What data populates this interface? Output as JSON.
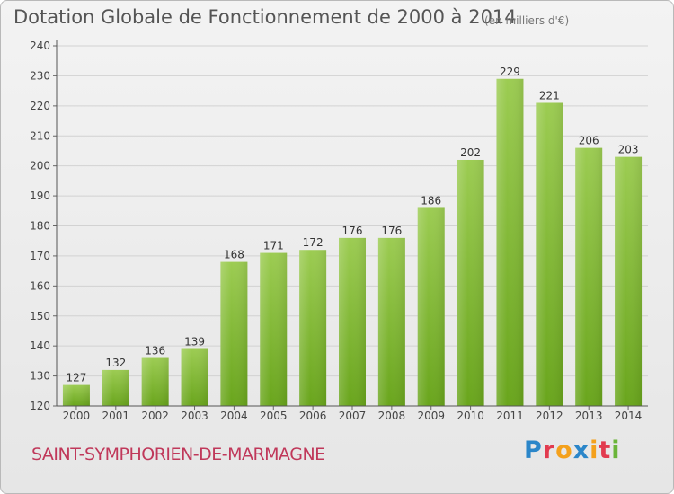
{
  "title": "Dotation Globale de Fonctionnement de 2000 à 2014",
  "unit_note": "(en milliers d'€)",
  "city": "SAINT-SYMPHORIEN-DE-MARMAGNE",
  "logo": {
    "letters": [
      "P",
      "r",
      "o",
      "x",
      "i",
      "t",
      "i"
    ]
  },
  "colors": {
    "bar_light": "#9ccc52",
    "bar_dark": "#69a51c",
    "city": "#c0385a"
  },
  "chart_data": {
    "type": "bar",
    "title": "Dotation Globale de Fonctionnement de 2000 à 2014",
    "categories": [
      "2000",
      "2001",
      "2002",
      "2003",
      "2004",
      "2005",
      "2006",
      "2007",
      "2008",
      "2009",
      "2010",
      "2011",
      "2012",
      "2013",
      "2014"
    ],
    "values": [
      127,
      132,
      136,
      139,
      168,
      171,
      172,
      176,
      176,
      186,
      202,
      229,
      221,
      206,
      203
    ],
    "ylim": [
      120,
      240
    ],
    "yticks": [
      120,
      130,
      140,
      150,
      160,
      170,
      180,
      190,
      200,
      210,
      220,
      230,
      240
    ],
    "grid": true,
    "xlabel": "",
    "ylabel": ""
  }
}
